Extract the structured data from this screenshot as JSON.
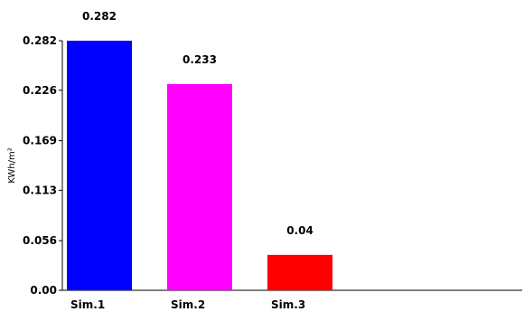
{
  "chart_data": {
    "type": "bar",
    "categories": [
      "Sim.1",
      "Sim.2",
      "Sim.3"
    ],
    "values": [
      0.282,
      0.233,
      0.04
    ],
    "value_labels": [
      "0.282",
      "0.233",
      "0.04"
    ],
    "bar_colors": [
      "#0000FF",
      "#FF00FF",
      "#FF0000"
    ],
    "ylabel": "KWh/m²",
    "xlabel": "",
    "title": "",
    "ylim": [
      0,
      0.282
    ],
    "yticks": [
      0,
      0.056,
      0.113,
      0.169,
      0.226,
      0.282
    ],
    "ytick_labels": [
      "0.00",
      "0.056",
      "0.113",
      "0.169",
      "0.226",
      "0.282"
    ],
    "grid": false,
    "legend": "none"
  }
}
